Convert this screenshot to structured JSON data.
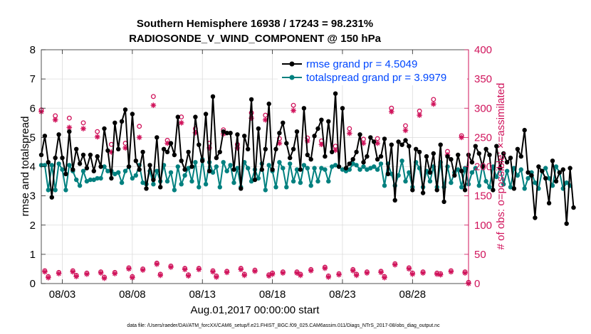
{
  "chart_data": {
    "type": "line",
    "title_line1": "Southern Hemisphere 16938 / 17243 = 98.231%",
    "title_line2": "RADIOSONDE_V_WIND_COMPONENT @ 150 hPa",
    "xlabel": "Aug.01,2017 00:00:00 start",
    "ylabel_left": "rmse and totalspread",
    "ylabel_right": "# of obs: o=possible; ×=assimilated",
    "footnote": "data file: /Users/raeder/DAI/ATM_forcXX/CAM6_setup/f.e21.FHIST_BGC.f09_025.CAM6assim.011/Diags_NTrS_2017-08/obs_diag_output.nc",
    "x_range_days": [
      1.5,
      32.0
    ],
    "x_ticks": [
      3,
      8,
      13,
      18,
      23,
      28
    ],
    "x_tick_labels": [
      "08/03",
      "08/08",
      "08/13",
      "08/18",
      "08/23",
      "08/28"
    ],
    "y_left_range": [
      0,
      8
    ],
    "y_left_ticks": [
      "0",
      "1",
      "2",
      "3",
      "4",
      "5",
      "6",
      "7",
      "8"
    ],
    "y_right_range": [
      0,
      400
    ],
    "y_right_ticks": [
      "0",
      "50",
      "100",
      "150",
      "200",
      "250",
      "300",
      "350",
      "400"
    ],
    "colors": {
      "rmse": "#000000",
      "spread": "#00807f",
      "obs": "#d0135b",
      "legend_text": "#0047ff",
      "right_axis": "#d0135b"
    },
    "series": [
      {
        "name": "rmse grand pr = 4.5049",
        "x_start": 1.5,
        "step": 0.25,
        "values": [
          4.4,
          5.05,
          4.15,
          2.95,
          4.3,
          5.1,
          4.3,
          3.75,
          5.2,
          3.9,
          4.6,
          4.1,
          4.4,
          3.95,
          4.4,
          3.85,
          4.35,
          4.0,
          5.3,
          4.55,
          3.6,
          5.5,
          4.6,
          5.55,
          5.95,
          4.0,
          5.8,
          4.2,
          3.9,
          4.5,
          3.25,
          4.05,
          3.55,
          5.0,
          3.3,
          4.6,
          4.5,
          4.8,
          4.4,
          5.7,
          4.2,
          3.9,
          4.5,
          4.0,
          5.7,
          4.75,
          4.2,
          5.8,
          3.85,
          6.4,
          4.3,
          4.5,
          5.2,
          5.15,
          5.15,
          3.9,
          5.1,
          3.25,
          5.05,
          4.6,
          6.3,
          3.55,
          5.3,
          3.9,
          4.6,
          6.15,
          3.9,
          4.6,
          5.15,
          5.5,
          4.8,
          4.3,
          4.6,
          5.2,
          3.9,
          6.0,
          4.4,
          4.25,
          5.05,
          5.3,
          5.6,
          4.35,
          5.55,
          4.5,
          6.5,
          4.0,
          6.0,
          3.95,
          4.1,
          4.25,
          4.5,
          5.1,
          4.15,
          4.35,
          5.0,
          4.85,
          4.25,
          4.35,
          4.95,
          3.75,
          4.75,
          2.85,
          4.85,
          4.75,
          4.9,
          4.7,
          3.2,
          4.6,
          4.5,
          3.1,
          4.35,
          3.8,
          4.45,
          3.2,
          4.75,
          2.8,
          4.35,
          4.25,
          3.7,
          4.4,
          3.85,
          3.2,
          4.4,
          4.15,
          4.7,
          4.45,
          4.0,
          4.6,
          4.4,
          3.2,
          4.7,
          3.95,
          4.45,
          4.15,
          4.3,
          3.25,
          4.6,
          4.35,
          5.25,
          3.8,
          3.7,
          2.25,
          4.0,
          3.85,
          3.6,
          2.75,
          4.2,
          3.5,
          3.8,
          3.9,
          2.05,
          3.95,
          2.6
        ]
      },
      {
        "name": "totalspread grand pr = 3.9979",
        "x_start": 1.5,
        "step": 0.25,
        "values": [
          4.05,
          4.05,
          3.2,
          4.05,
          3.2,
          4.1,
          3.9,
          3.2,
          4.05,
          3.85,
          3.55,
          3.35,
          3.85,
          3.5,
          3.55,
          3.55,
          3.6,
          3.6,
          4.0,
          3.85,
          3.85,
          3.75,
          3.8,
          3.45,
          3.85,
          4.0,
          3.6,
          3.7,
          4.05,
          3.45,
          3.4,
          3.85,
          3.4,
          3.85,
          3.5,
          4.05,
          3.5,
          3.8,
          3.2,
          4.0,
          3.4,
          3.7,
          3.95,
          3.5,
          4.15,
          3.3,
          4.25,
          3.4,
          4.15,
          3.8,
          4.0,
          3.3,
          4.15,
          3.85,
          4.05,
          3.45,
          3.95,
          3.3,
          4.15,
          3.95,
          3.5,
          3.9,
          3.6,
          4.1,
          3.2,
          4.05,
          3.85,
          3.3,
          4.15,
          3.95,
          3.3,
          4.1,
          3.5,
          3.9,
          3.45,
          4.05,
          3.95,
          3.35,
          3.95,
          3.5,
          3.95,
          3.9,
          3.5,
          4.0,
          4.05,
          4.0,
          3.9,
          3.85,
          3.9,
          4.1,
          4.05,
          3.9,
          4.0,
          3.9,
          3.95,
          4.0,
          3.9,
          4.1,
          3.35,
          4.1,
          3.75,
          3.35,
          3.7,
          4.2,
          3.5,
          3.8,
          3.3,
          4.15,
          3.95,
          3.3,
          3.85,
          3.5,
          4.0,
          3.3,
          4.15,
          3.3,
          4.0,
          3.45,
          3.8,
          3.9,
          3.3,
          3.95,
          3.4,
          3.8,
          3.95,
          3.35,
          4.05,
          3.5,
          3.3,
          4.0,
          3.65,
          3.95,
          3.4,
          3.85,
          3.3,
          3.95,
          3.7,
          3.9,
          3.25,
          3.6,
          3.8,
          3.45,
          3.25,
          3.85,
          3.95,
          3.6,
          3.35,
          4.0,
          3.8,
          3.25,
          3.45,
          3.35
        ]
      },
      {
        "name": "obs possible",
        "marker": "o",
        "x": [
          1.5,
          2.5,
          3.5,
          4.5,
          5.5,
          6.5,
          7.5,
          8.5,
          9.5,
          10.5,
          11.5,
          12.5,
          13.5,
          14.5,
          15.5,
          16.5,
          17.5,
          18.5,
          19.5,
          20.5,
          21.5,
          22.5,
          23.5,
          24.5,
          25.5,
          26.5,
          27.5,
          28.5,
          29.5,
          30.5,
          31.5,
          1.75,
          2.75,
          3.75,
          4.75,
          5.75,
          6.75,
          7.75,
          8.75,
          9.75,
          10.75,
          11.75,
          12.75,
          13.75,
          14.75,
          15.75,
          16.75,
          17.75,
          18.75,
          19.75,
          20.75,
          21.75,
          22.75,
          23.75,
          24.75,
          25.75,
          26.75,
          27.75,
          28.75,
          29.75,
          30.75,
          31.75,
          2.0,
          4.0,
          6.0,
          8.0,
          10.0,
          12.0,
          14.0,
          16.0,
          18.0,
          20.0,
          22.0,
          24.0,
          26.0,
          28.0,
          30.0,
          32.0
        ],
        "values": [
          297,
          287,
          283,
          275,
          260,
          238,
          240,
          269,
          320,
          245,
          285,
          265,
          240,
          263,
          238,
          292,
          288,
          248,
          305,
          249,
          244,
          235,
          265,
          247,
          248,
          300,
          270,
          295,
          315,
          226,
          253,
          22,
          19,
          22,
          18,
          20,
          19,
          27,
          25,
          35,
          30,
          26,
          26,
          22,
          21,
          26,
          23,
          15,
          20,
          20,
          24,
          28,
          17,
          24,
          20,
          21,
          34,
          27,
          20,
          18,
          22,
          20,
          12,
          14,
          11,
          12,
          16,
          15,
          13,
          16,
          18,
          16,
          13,
          16,
          12,
          18,
          17,
          2
        ]
      },
      {
        "name": "obs assimilated",
        "marker": "x",
        "x": [
          1.5,
          2.5,
          3.5,
          4.5,
          5.5,
          6.5,
          7.5,
          8.5,
          9.5,
          10.5,
          11.5,
          12.5,
          13.5,
          14.5,
          15.5,
          16.5,
          17.5,
          18.5,
          19.5,
          20.5,
          21.5,
          22.5,
          23.5,
          24.5,
          25.5,
          26.5,
          27.5,
          28.5,
          29.5,
          30.5,
          31.5,
          1.75,
          2.75,
          3.75,
          4.75,
          5.75,
          6.75,
          7.75,
          8.75,
          9.75,
          10.75,
          11.75,
          12.75,
          13.75,
          14.75,
          15.75,
          16.75,
          17.75,
          18.75,
          19.75,
          20.75,
          21.75,
          22.75,
          23.75,
          24.75,
          25.75,
          26.75,
          27.75,
          28.75,
          29.75,
          30.75,
          31.75,
          2.0,
          4.0,
          6.0,
          8.0,
          10.0,
          12.0,
          14.0,
          16.0,
          18.0,
          20.0,
          22.0,
          24.0,
          26.0,
          28.0,
          30.0,
          32.0
        ],
        "values": [
          294,
          280,
          267,
          265,
          251,
          225,
          232,
          250,
          305,
          240,
          275,
          258,
          232,
          256,
          232,
          283,
          280,
          240,
          296,
          244,
          238,
          228,
          257,
          240,
          240,
          294,
          262,
          288,
          307,
          220,
          250,
          20,
          17,
          20,
          16,
          18,
          17,
          25,
          23,
          33,
          28,
          24,
          24,
          20,
          19,
          24,
          21,
          13,
          18,
          18,
          22,
          26,
          15,
          22,
          18,
          19,
          32,
          25,
          18,
          16,
          20,
          18,
          10,
          12,
          9,
          10,
          14,
          13,
          11,
          14,
          16,
          14,
          11,
          14,
          10,
          16,
          15,
          0
        ]
      }
    ]
  }
}
